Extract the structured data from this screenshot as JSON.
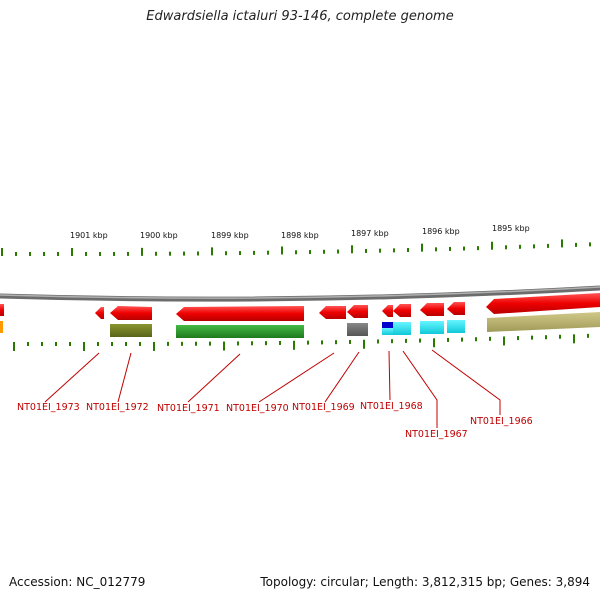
{
  "title": "Edwardsiella ictaluri 93-146, complete genome",
  "footer": {
    "accession": "Accession: NC_012779",
    "summary": "Topology: circular; Length: 3,812,315 bp; Genes: 3,894"
  },
  "position_labels": [
    "1901 kbp",
    "1900 kbp",
    "1899 kbp",
    "1898 kbp",
    "1897 kbp",
    "1896 kbp",
    "1895 kbp"
  ],
  "gene_labels": [
    "NT01EI_1973",
    "NT01EI_1972",
    "NT01EI_1971",
    "NT01EI_1970",
    "NT01EI_1969",
    "NT01EI_1968",
    "NT01EI_1967",
    "NT01EI_1966"
  ],
  "colors": {
    "backbone": "#888888",
    "tick": "#2a7a00",
    "gene": "#ee0000",
    "gene_label": "#c00000",
    "feature_olive": "#6e7a1e",
    "feature_green": "#2a9a2a",
    "feature_gray": "#6a6a6a",
    "feature_cyan": "#22e0f0",
    "feature_blue": "#0000cc",
    "feature_khaki": "#b8b070",
    "feature_orange": "#ff9900"
  }
}
